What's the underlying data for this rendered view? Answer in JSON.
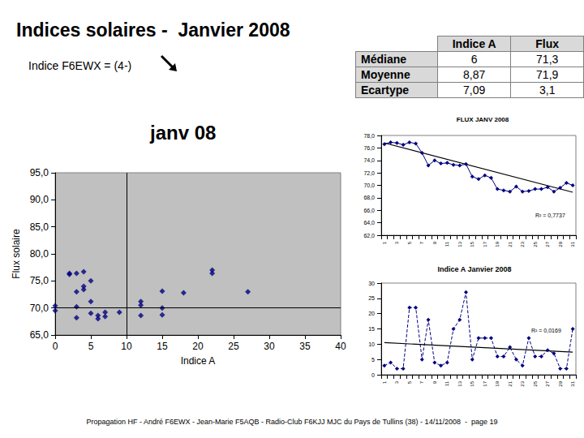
{
  "title": "Indices solaires -  Janvier 2008",
  "subtitle": "Indice F6EWX = (4-)",
  "table": {
    "header": [
      "Indice A",
      "Flux"
    ],
    "rows": [
      [
        "Médiane",
        "6",
        "71,3"
      ],
      [
        "Moyenne",
        "8,87",
        "71,9"
      ],
      [
        "Ecartype",
        "7,09",
        "3,1"
      ]
    ]
  },
  "footer": "Propagation HF - André F6EWX - Jean-Marie F5AQB - Radio-Club F6KJJ MJC du Pays de Tullins (38) - 14/11/2008  -  page 19",
  "chart_data": [
    {
      "type": "scatter",
      "title": "janv 08",
      "x_label": "Indice A",
      "y_label": "Flux solaire",
      "x": [
        0,
        0,
        2,
        2,
        3,
        4,
        3,
        3,
        3,
        4,
        4,
        5,
        5,
        5,
        6,
        6,
        7,
        7,
        9,
        12,
        12,
        12,
        15,
        15,
        15,
        18,
        22,
        22,
        27
      ],
      "values": [
        70.4,
        69.5,
        76.2,
        76.4,
        76.4,
        76.7,
        73.0,
        70.2,
        68.2,
        74.0,
        73.4,
        75.0,
        71.2,
        69.0,
        68.6,
        68.0,
        68.4,
        69.2,
        69.2,
        71.2,
        70.5,
        68.6,
        73.1,
        70.0,
        68.7,
        72.8,
        77.0,
        76.4,
        73.0
      ],
      "color": "#000080",
      "marker": "diamond",
      "grid": false,
      "xlim": [
        0,
        40
      ],
      "xticks": [
        0,
        5,
        10,
        15,
        20,
        25,
        30,
        35,
        40
      ],
      "ylim": [
        65,
        95
      ],
      "yticks": [
        {
          "value": 65,
          "label": "65,0"
        },
        {
          "value": 70,
          "label": "70,0"
        },
        {
          "value": 75,
          "label": "75,0"
        },
        {
          "value": 80,
          "label": "80,0"
        },
        {
          "value": 85,
          "label": "85,0"
        },
        {
          "value": 90,
          "label": "90,0"
        },
        {
          "value": 95,
          "label": "95,0"
        }
      ],
      "vlines": [
        10
      ],
      "hlines": [
        70
      ]
    },
    {
      "type": "line",
      "title": "FLUX JANV 2008",
      "categories": [
        "1",
        null,
        "3",
        null,
        "5",
        null,
        "7",
        null,
        "9",
        null,
        "11",
        null,
        "13",
        null,
        "15",
        null,
        "17",
        null,
        "19",
        null,
        "21",
        null,
        "23",
        null,
        "25",
        null,
        "27",
        null,
        "29",
        null,
        "31"
      ],
      "values": [
        76.6,
        76.9,
        76.8,
        76.5,
        76.9,
        76.7,
        75.2,
        73.2,
        74.0,
        73.5,
        73.6,
        73.3,
        73.2,
        73.4,
        71.4,
        71.0,
        71.6,
        71.2,
        69.4,
        69.2,
        69.0,
        69.8,
        69.0,
        69.1,
        69.4,
        69.4,
        69.7,
        69.0,
        69.6,
        70.4,
        70.0
      ],
      "color": "#000080",
      "marker": "diamond",
      "line_style": "solid",
      "grid": false,
      "ylim": [
        62,
        78
      ],
      "yticks": [
        {
          "value": 62,
          "label": "62,0"
        },
        {
          "value": 64,
          "label": "64,0"
        },
        {
          "value": 66,
          "label": "66,0"
        },
        {
          "value": 68,
          "label": "68,0"
        },
        {
          "value": 70,
          "label": "70,0"
        },
        {
          "value": 72,
          "label": "72,0"
        },
        {
          "value": 74,
          "label": "74,0"
        },
        {
          "value": 76,
          "label": "76,0"
        },
        {
          "value": 78,
          "label": "78,0"
        }
      ],
      "trend": {
        "x": [
          "1",
          "31"
        ],
        "values": [
          76.8,
          68.9
        ]
      },
      "annotations": [
        "R² = 0,7737"
      ]
    },
    {
      "type": "line",
      "title": "Indice A Janvier 2008",
      "categories": [
        "1",
        null,
        "3",
        null,
        "5",
        null,
        "7",
        null,
        "9",
        null,
        "11",
        null,
        "13",
        null,
        "15",
        null,
        "17",
        null,
        "19",
        null,
        "21",
        null,
        "23",
        null,
        "25",
        null,
        "27",
        null,
        "29",
        null,
        "31"
      ],
      "values": [
        3,
        4,
        2,
        2,
        22,
        22,
        5,
        18,
        4,
        3,
        4,
        15,
        18,
        27,
        5,
        12,
        12,
        12,
        6,
        6,
        9,
        5,
        3,
        12,
        6,
        6,
        8,
        7,
        2,
        2,
        15
      ],
      "color": "#000080",
      "marker": "diamond",
      "line_style": "dashed",
      "grid": false,
      "ylim": [
        0,
        30
      ],
      "yticks": [
        0,
        5,
        10,
        15,
        20,
        25,
        30
      ],
      "trend": {
        "x": [
          "1",
          "31"
        ],
        "values": [
          10.5,
          7.4
        ]
      },
      "annotations": [
        "R² = 0,0169"
      ]
    }
  ]
}
